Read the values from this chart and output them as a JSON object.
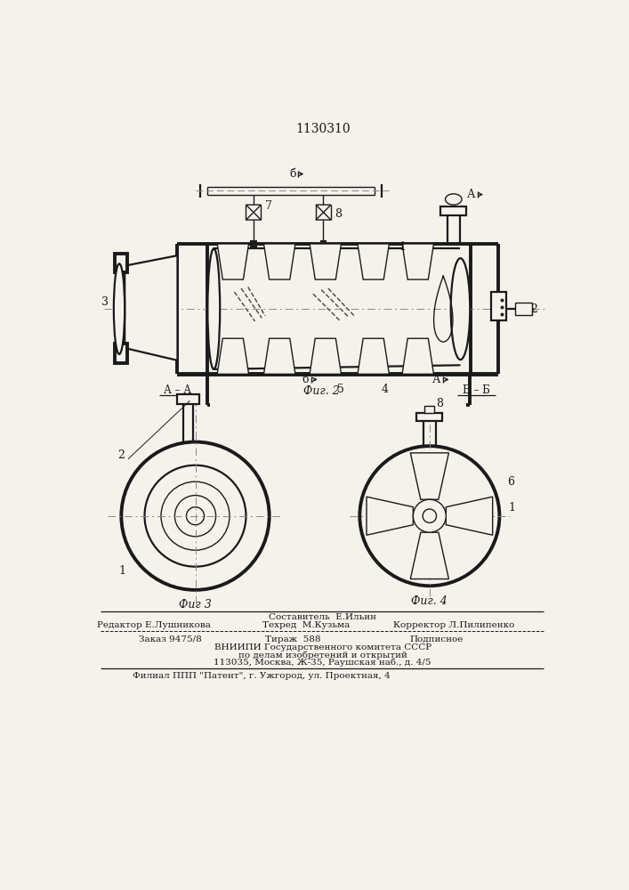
{
  "bg_color": "#f5f2ec",
  "line_color": "#1a1a1a",
  "patent_number": "1130310",
  "fig2_label": "Фиг. 2",
  "fig3_label": "Фиг 3",
  "fig4_label": "Фиг. 4",
  "label_AA": "А – А",
  "label_BB": "Б – Б",
  "footer_row0_center": "Составитель  Е.Ильин",
  "footer_row1_left": "Редактор Е.Лушникова",
  "footer_row1_center": "Техред  М.Кузьма",
  "footer_row1_right": "Корректор Л.Пилипенко",
  "footer_row2_col1": "Заказ 9475/8",
  "footer_row2_col2": "Тираж  588",
  "footer_row2_col3": "Подписное",
  "footer_row3": "ВНИИПИ Государственного комитета СССР",
  "footer_row4": "по делам изобретений и открытий",
  "footer_row5": "113035, Москва, Ж-35, Раушская наб., д. 4/5",
  "footer_row6": "Филиал ППП \"Патент\", г. Ужгород, ул. Проектная, 4"
}
